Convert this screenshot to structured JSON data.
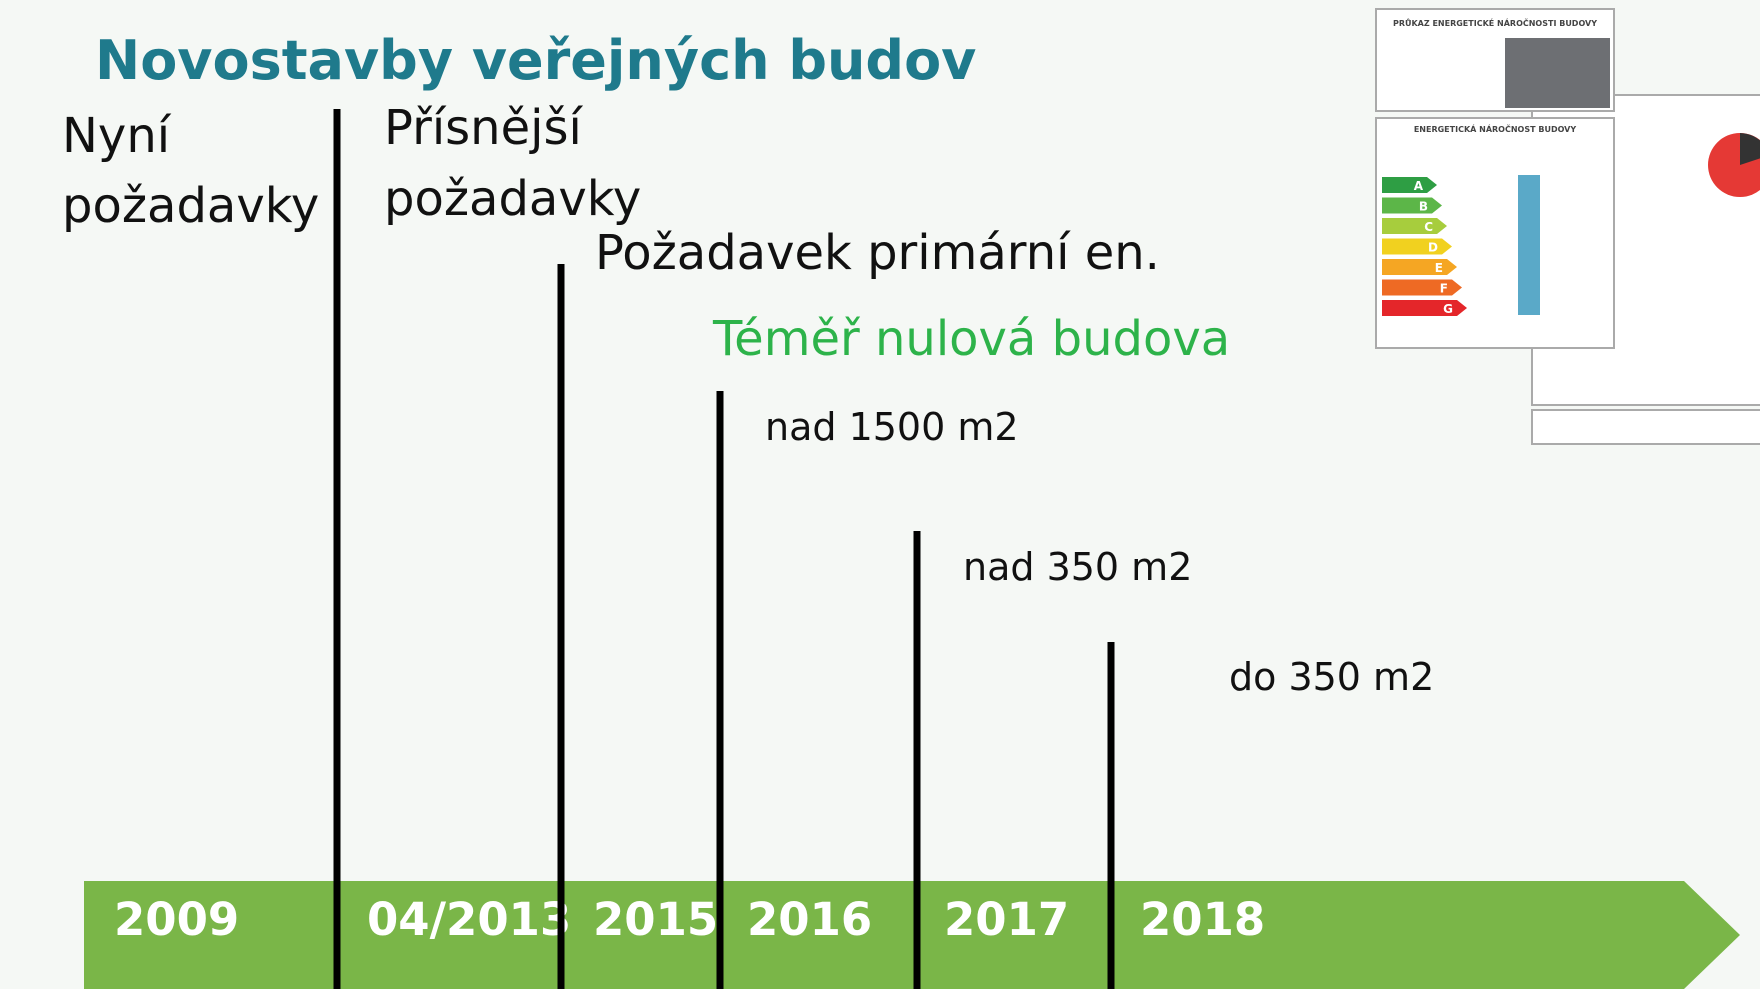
{
  "title": "Novostavby veřejných budov",
  "milestones": [
    {
      "year": "2009",
      "label_lines": [
        "Nyní",
        "požadavky"
      ]
    },
    {
      "year": "04/2013",
      "label_lines": [
        "Přísnější",
        "požadavky"
      ]
    },
    {
      "year": "2015",
      "label_lines": [
        "Požadavek primární en."
      ]
    },
    {
      "year": "2016",
      "label_lines": [
        "nad 1500 m2"
      ]
    },
    {
      "year": "2017",
      "label_lines": [
        "nad 350 m2"
      ]
    },
    {
      "year": "2018",
      "label_lines": [
        "do 350 m2"
      ]
    }
  ],
  "highlight": "Téměř nulová budova",
  "certificate": {
    "heading": "PRŮKAZ ENERGETICKÉ NÁROČNOSTI BUDOVY",
    "subheading": "ENERGETICKÁ NÁROČNOST BUDOVY",
    "classes": [
      "A",
      "B",
      "C",
      "D",
      "E",
      "F",
      "G"
    ]
  }
}
